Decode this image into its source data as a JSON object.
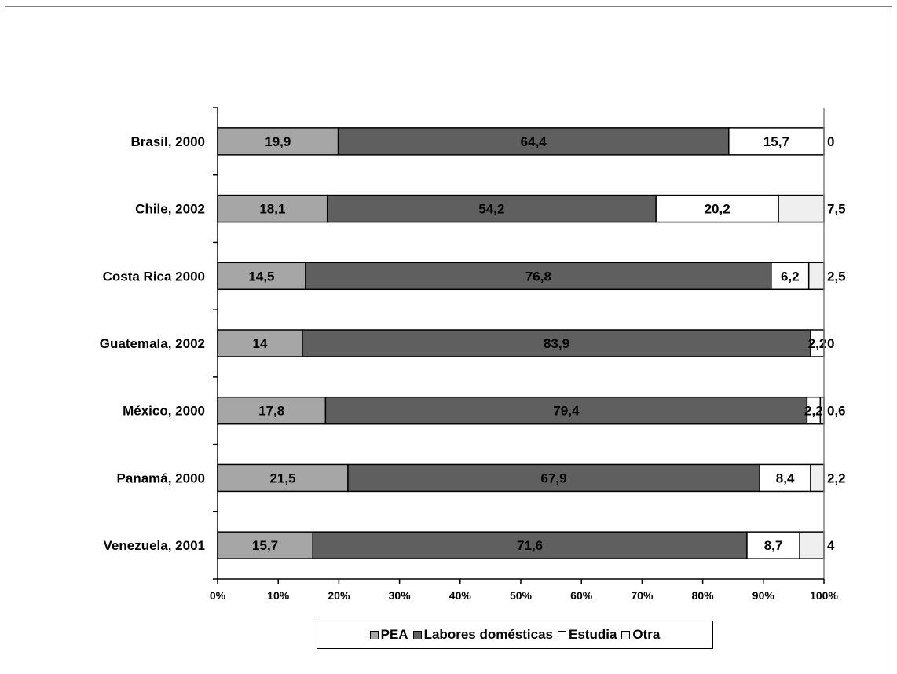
{
  "chart_data": {
    "type": "bar",
    "orientation": "horizontal",
    "stacked": "percent",
    "categories": [
      "Brasil, 2000",
      "Chile, 2002",
      "Costa Rica 2000",
      "Guatemala, 2002",
      "México, 2000",
      "Panamá, 2000",
      "Venezuela, 2001"
    ],
    "series": [
      {
        "name": "PEA",
        "values": [
          19.9,
          18.1,
          14.5,
          14,
          17.8,
          21.5,
          15.7
        ],
        "labels": [
          "19,9",
          "18,1",
          "14,5",
          "14",
          "17,8",
          "21,5",
          "15,7"
        ],
        "color": "#a6a6a6"
      },
      {
        "name": "Labores domésticas",
        "values": [
          64.4,
          54.2,
          76.8,
          83.9,
          79.4,
          67.9,
          71.6
        ],
        "labels": [
          "64,4",
          "54,2",
          "76,8",
          "83,9",
          "79,4",
          "67,9",
          "71,6"
        ],
        "color": "#5f5f5f"
      },
      {
        "name": "Estudia",
        "values": [
          15.7,
          20.2,
          6.2,
          2.2,
          2.2,
          8.4,
          8.7
        ],
        "labels": [
          "15,7",
          "20,2",
          "6,2",
          "2,2",
          "2,2",
          "8,4",
          "8,7"
        ],
        "color": "#ffffff"
      },
      {
        "name": "Otra",
        "values": [
          0,
          7.5,
          2.5,
          0,
          0.6,
          2.2,
          4
        ],
        "labels": [
          "0",
          "7,5",
          "2,5",
          "0",
          "0,6",
          "2,2",
          "4"
        ],
        "color": "#efefef"
      }
    ],
    "x_ticks": [
      "0%",
      "10%",
      "20%",
      "30%",
      "40%",
      "50%",
      "60%",
      "70%",
      "80%",
      "90%",
      "100%"
    ],
    "xlim": [
      0,
      100
    ],
    "grid": false,
    "legend_position": "bottom"
  }
}
